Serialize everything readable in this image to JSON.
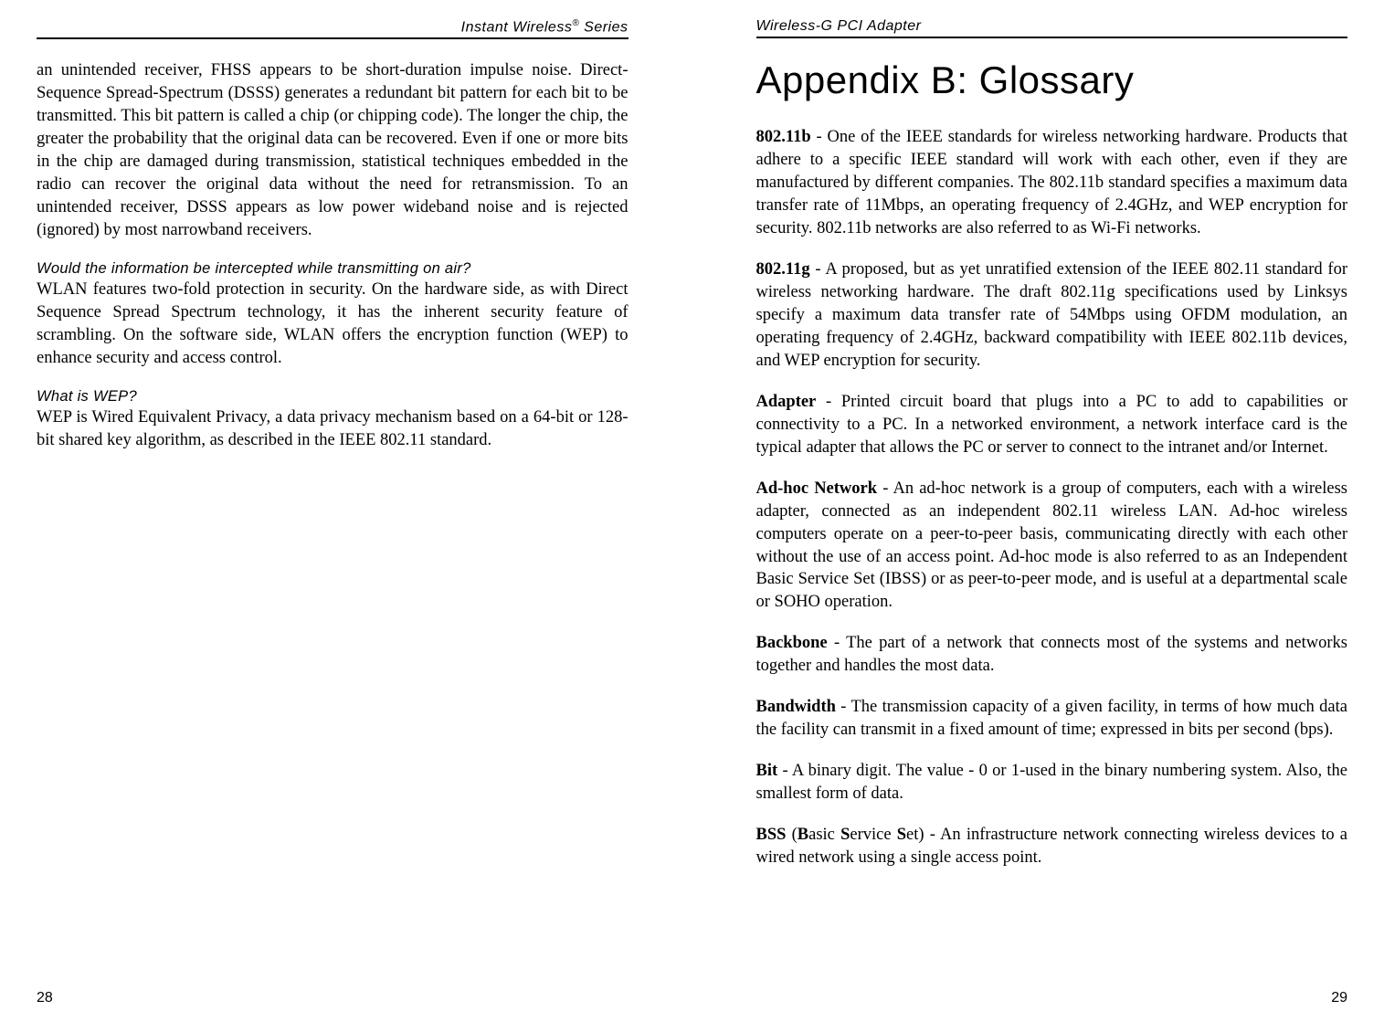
{
  "left": {
    "header_prefix": "Instant Wireless",
    "header_suffix": " Series",
    "sup": "®",
    "para1": "an unintended receiver, FHSS appears to be short-duration impulse noise. Direct-Sequence Spread-Spectrum (DSSS) generates a redundant bit pattern for each bit to be transmitted. This bit pattern is called a chip (or chipping code). The longer the chip, the greater the probability that the original data can be recovered. Even if one or more bits in the chip are damaged during transmission, statistical techniques embedded in the radio can recover the original data without the need for retransmission. To an unintended receiver, DSSS appears as low power wideband noise and is rejected (ignored) by most narrowband receivers.",
    "q1_head": "Would the information be intercepted while transmitting on air?",
    "q1_body": "WLAN features two-fold protection in security. On the hardware side, as with Direct Sequence Spread Spectrum technology, it has the inherent security feature of scrambling. On the software side, WLAN offers the encryption function (WEP) to enhance security and access control.",
    "q2_head": "What is WEP?",
    "q2_body": "WEP is Wired Equivalent Privacy, a data privacy mechanism based on a 64-bit or 128-bit shared key algorithm, as described in the IEEE 802.11 standard.",
    "page_num": "28"
  },
  "right": {
    "header": "Wireless-G PCI Adapter",
    "title": "Appendix B: Glossary",
    "defs": {
      "d1_term": "802.11b",
      "d1_body": " - One of the IEEE standards for wireless networking hardware. Products that adhere to a specific IEEE standard will work with each other, even if they are manufactured by different companies. The 802.11b standard specifies a maximum data transfer rate of 11Mbps, an operating frequency of 2.4GHz, and WEP encryption for security. 802.11b networks are also referred to as Wi-Fi networks.",
      "d2_term": "802.11g",
      "d2_body": " - A proposed, but as yet unratified extension of the IEEE 802.11 standard for wireless networking hardware. The draft 802.11g specifications used by Linksys specify a maximum data transfer rate of 54Mbps using OFDM modulation, an operating frequency of 2.4GHz, backward compatibility with IEEE 802.11b devices, and WEP encryption for security.",
      "d3_term": "Adapter",
      "d3_body": " - Printed circuit board that plugs into a PC to add to capabilities or connectivity to a PC. In a networked environment, a network interface card is the typical adapter that allows the PC or server to connect to the intranet and/or Internet.",
      "d4_term": "Ad-hoc Network",
      "d4_body": " - An ad-hoc network is a group of computers, each with a wireless adapter, connected as an independent 802.11 wireless LAN.  Ad-hoc wireless computers operate on a peer-to-peer basis, communicating directly with each other without the use of an access point.  Ad-hoc mode is also referred to as an Independent Basic Service Set (IBSS) or as peer-to-peer mode, and is useful at a departmental scale or SOHO operation.",
      "d5_term": "Backbone",
      "d5_body": " - The part of a network that connects most of the systems and networks together and handles the most data.",
      "d6_term": "Bandwidth",
      "d6_body": " - The transmission capacity of a given facility, in terms of how much data the facility can transmit in a fixed amount of time; expressed in bits per second (bps).",
      "d7_term": "Bit",
      "d7_body": " - A binary digit. The value - 0 or 1-used in the binary numbering system. Also, the smallest form of data.",
      "d8_prefix": "BSS",
      "d8_paren_open": " (",
      "d8_b": "B",
      "d8_mid1": "asic ",
      "d8_s1": "S",
      "d8_mid2": "ervice ",
      "d8_s2": "S",
      "d8_mid3": "et) - An infrastructure network connecting wireless devices to a wired network using a single access point."
    },
    "page_num": "29"
  }
}
